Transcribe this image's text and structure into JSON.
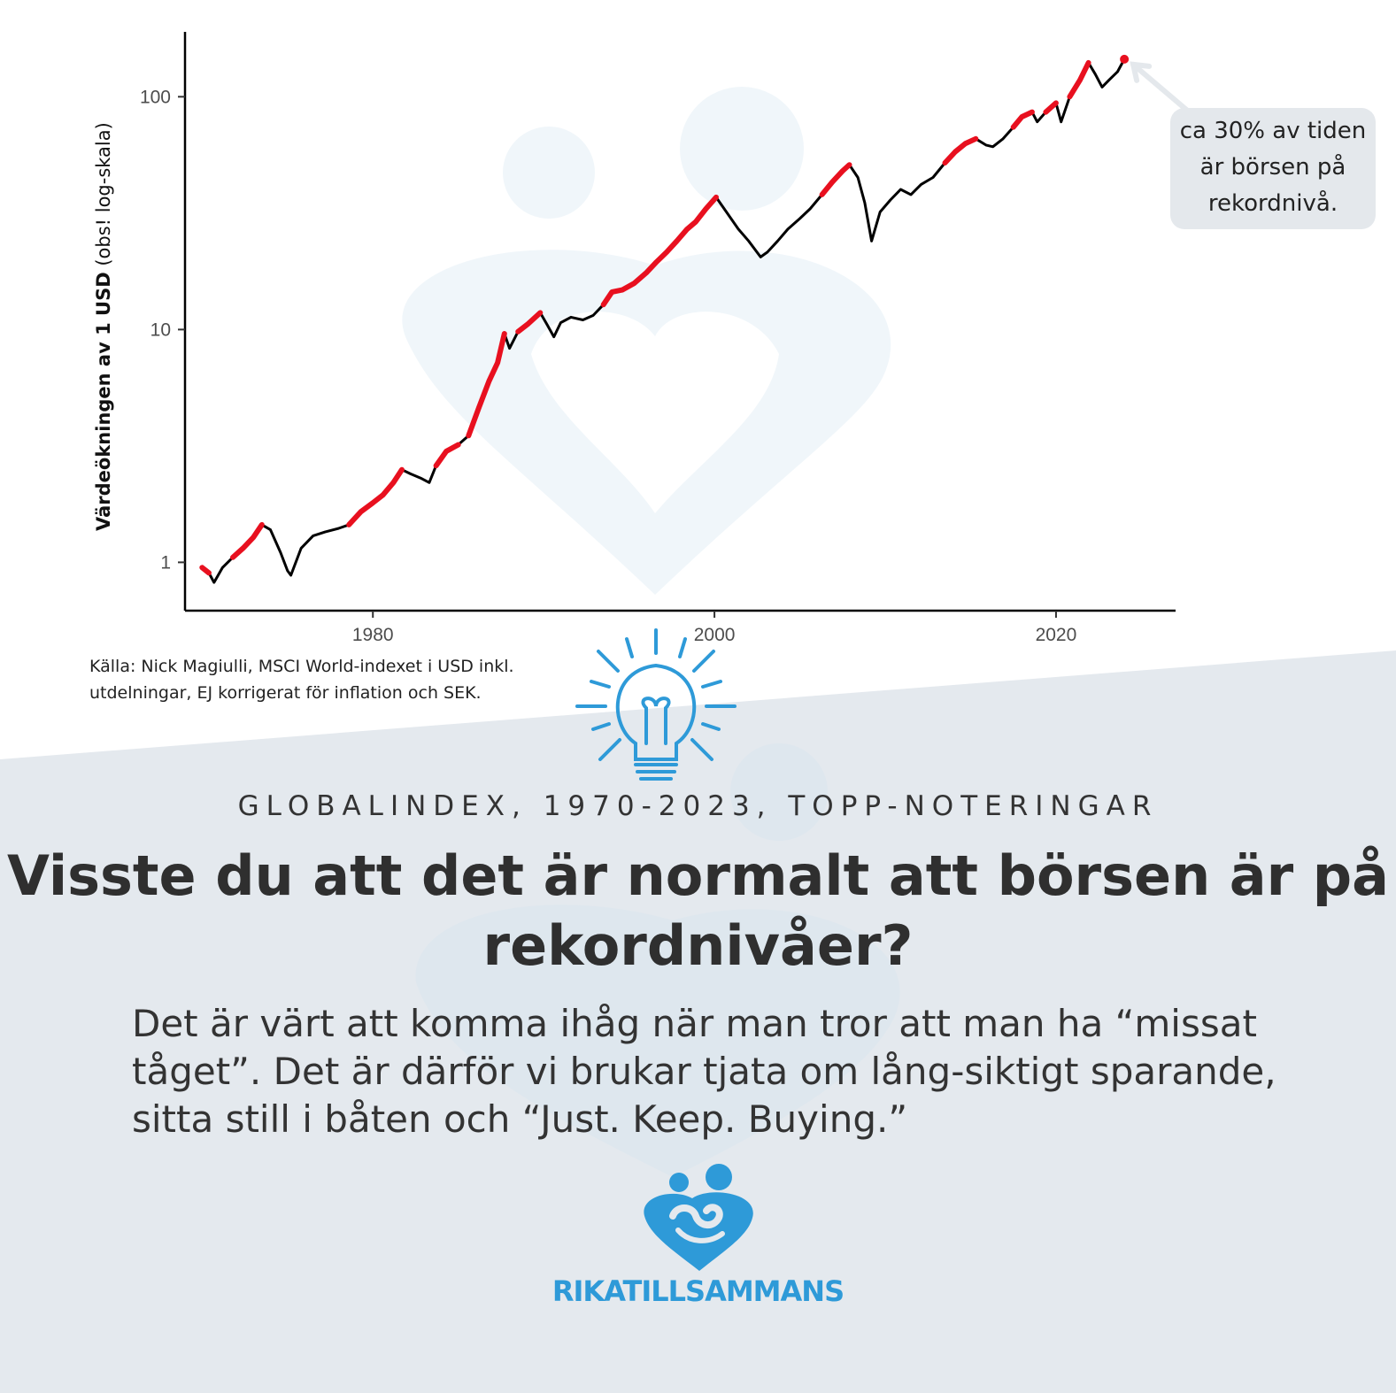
{
  "chart_data": {
    "type": "line",
    "title": "",
    "xlabel": "",
    "ylabel_bold": "Värdeökningen av 1 USD",
    "ylabel_note": "(obs! log-skala)",
    "y_scale": "log",
    "xlim": [
      1969,
      2027
    ],
    "ylim": [
      0.62,
      190
    ],
    "x_ticks": [
      1980,
      2000,
      2020
    ],
    "y_ticks": [
      1,
      10,
      100
    ],
    "grid": false,
    "series": [
      {
        "color": "#000000",
        "highlight_color": "#e8101f",
        "highlight_meaning": "record level (all-time high)",
        "points": [
          [
            1970.0,
            0.95
          ],
          [
            1970.4,
            0.9
          ],
          [
            1970.7,
            0.82
          ],
          [
            1971.2,
            0.95
          ],
          [
            1971.8,
            1.05
          ],
          [
            1972.4,
            1.15
          ],
          [
            1973.0,
            1.28
          ],
          [
            1973.5,
            1.45
          ],
          [
            1974.0,
            1.38
          ],
          [
            1974.6,
            1.1
          ],
          [
            1975.0,
            0.92
          ],
          [
            1975.2,
            0.88
          ],
          [
            1975.8,
            1.15
          ],
          [
            1976.5,
            1.3
          ],
          [
            1977.2,
            1.35
          ],
          [
            1978.0,
            1.4
          ],
          [
            1978.6,
            1.45
          ],
          [
            1979.3,
            1.65
          ],
          [
            1980.0,
            1.8
          ],
          [
            1980.6,
            1.95
          ],
          [
            1981.2,
            2.2
          ],
          [
            1981.7,
            2.5
          ],
          [
            1982.2,
            2.4
          ],
          [
            1982.8,
            2.3
          ],
          [
            1983.3,
            2.2
          ],
          [
            1983.7,
            2.6
          ],
          [
            1984.3,
            3.0
          ],
          [
            1985.0,
            3.2
          ],
          [
            1985.6,
            3.5
          ],
          [
            1986.2,
            4.6
          ],
          [
            1986.8,
            6.0
          ],
          [
            1987.3,
            7.2
          ],
          [
            1987.7,
            9.6
          ],
          [
            1988.0,
            8.3
          ],
          [
            1988.5,
            9.8
          ],
          [
            1989.1,
            10.6
          ],
          [
            1989.8,
            11.8
          ],
          [
            1990.2,
            10.5
          ],
          [
            1990.6,
            9.3
          ],
          [
            1991.0,
            10.7
          ],
          [
            1991.6,
            11.3
          ],
          [
            1992.3,
            11.0
          ],
          [
            1992.9,
            11.5
          ],
          [
            1993.5,
            12.8
          ],
          [
            1994.0,
            14.5
          ],
          [
            1994.6,
            14.8
          ],
          [
            1995.3,
            15.8
          ],
          [
            1996.0,
            17.5
          ],
          [
            1996.6,
            19.5
          ],
          [
            1997.2,
            21.5
          ],
          [
            1997.8,
            24.0
          ],
          [
            1998.4,
            27.0
          ],
          [
            1998.9,
            29.0
          ],
          [
            1999.5,
            33.0
          ],
          [
            2000.1,
            37.0
          ],
          [
            2000.7,
            32.0
          ],
          [
            2001.4,
            27.0
          ],
          [
            2002.0,
            24.0
          ],
          [
            2002.7,
            20.5
          ],
          [
            2003.1,
            21.5
          ],
          [
            2003.7,
            24.0
          ],
          [
            2004.3,
            27.0
          ],
          [
            2005.0,
            30.0
          ],
          [
            2005.6,
            33.0
          ],
          [
            2006.3,
            38.0
          ],
          [
            2006.9,
            43.0
          ],
          [
            2007.5,
            48.0
          ],
          [
            2007.9,
            51.0
          ],
          [
            2008.4,
            45.0
          ],
          [
            2008.8,
            35.0
          ],
          [
            2009.2,
            24.0
          ],
          [
            2009.7,
            32.0
          ],
          [
            2010.3,
            36.0
          ],
          [
            2010.9,
            40.0
          ],
          [
            2011.5,
            38.0
          ],
          [
            2012.1,
            42.0
          ],
          [
            2012.8,
            45.0
          ],
          [
            2013.5,
            52.0
          ],
          [
            2014.1,
            58.0
          ],
          [
            2014.7,
            63.0
          ],
          [
            2015.3,
            66.0
          ],
          [
            2015.9,
            62.0
          ],
          [
            2016.3,
            61.0
          ],
          [
            2016.9,
            66.0
          ],
          [
            2017.5,
            74.0
          ],
          [
            2018.0,
            82.0
          ],
          [
            2018.6,
            86.0
          ],
          [
            2018.9,
            78.0
          ],
          [
            2019.4,
            86.0
          ],
          [
            2020.0,
            94.0
          ],
          [
            2020.3,
            78.0
          ],
          [
            2020.8,
            100.0
          ],
          [
            2021.4,
            118.0
          ],
          [
            2021.9,
            140.0
          ],
          [
            2022.3,
            125.0
          ],
          [
            2022.7,
            110.0
          ],
          [
            2023.1,
            118.0
          ],
          [
            2023.6,
            128.0
          ],
          [
            2024.0,
            145.0
          ]
        ],
        "record_segments": [
          [
            1970.0,
            1970.4
          ],
          [
            1971.8,
            1973.5
          ],
          [
            1978.6,
            1981.7
          ],
          [
            1983.7,
            1985.0
          ],
          [
            1985.6,
            1987.7
          ],
          [
            1988.5,
            1989.8
          ],
          [
            1993.5,
            2000.1
          ],
          [
            2006.3,
            2007.9
          ],
          [
            2013.5,
            2015.3
          ],
          [
            2017.5,
            2018.6
          ],
          [
            2019.4,
            2020.0
          ],
          [
            2020.8,
            2021.9
          ],
          [
            2024.0,
            2024.0
          ]
        ]
      }
    ],
    "annotation": "ca 30% av tiden är börsen på rekordnivå."
  },
  "source_note": "Källa: Nick Magiulli, MSCI World-indexet i USD inkl. utdelningar, EJ korrigerat för inflation och SEK.",
  "kicker": "GLOBALINDEX, 1970-2023, TOPP-NOTERINGAR",
  "headline": "Visste du att det är normalt att börsen är på rekordnivåer?",
  "body": "Det är värt att komma ihåg när man tror att man ha “missat tåget”. Det är därför vi brukar tjata om lång-siktigt sparande, sitta still i båten och “Just. Keep. Buying.”",
  "brand": "RIKATILLSAMMANS",
  "icons": [
    "lightbulb-icon",
    "logo-heart-icon"
  ],
  "colors": {
    "accent": "#2e9ad8",
    "record": "#e8101f",
    "band": "#e4e9ee",
    "text": "#333333"
  }
}
